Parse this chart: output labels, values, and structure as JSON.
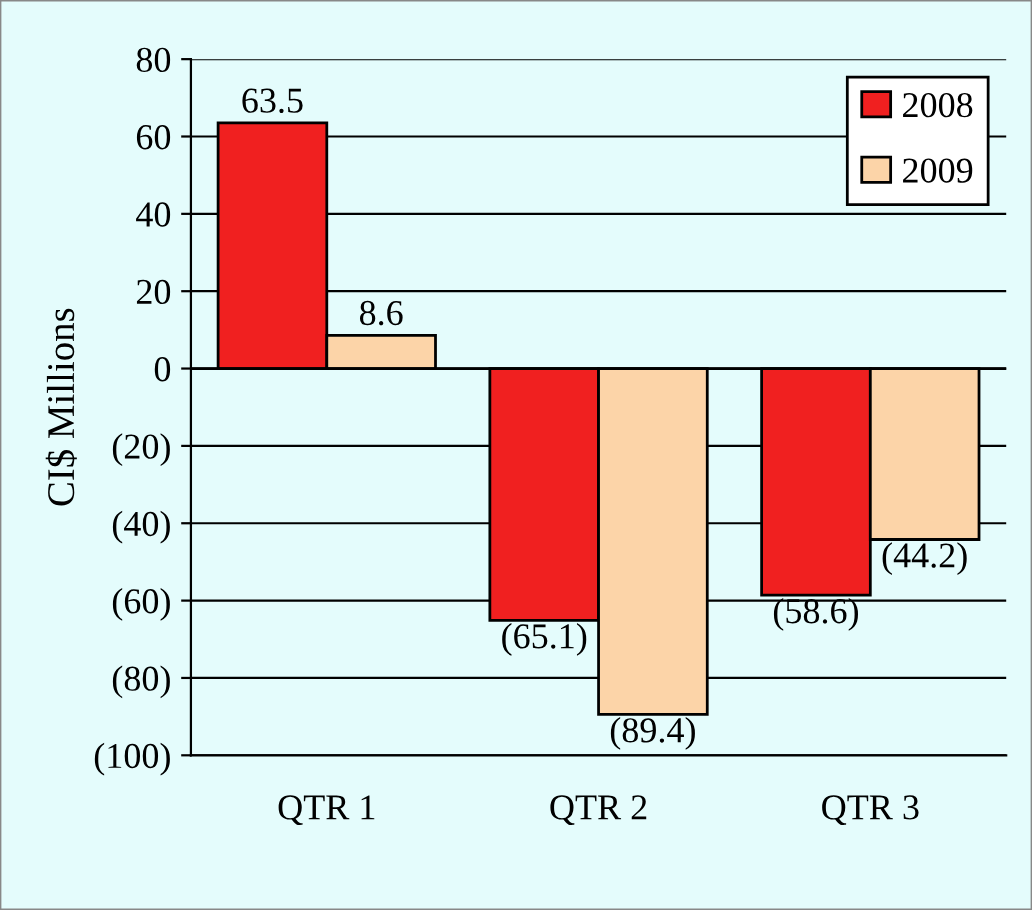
{
  "chart_data": {
    "type": "bar",
    "ylabel": "CI$ Millions",
    "categories": [
      "QTR 1",
      "QTR 2",
      "QTR 3"
    ],
    "series": [
      {
        "name": "2008",
        "color": "#f02020",
        "values": [
          63.5,
          -65.1,
          -58.6
        ],
        "value_labels": [
          "63.5",
          "(65.1)",
          "(58.6)"
        ]
      },
      {
        "name": "2009",
        "color": "#fcd4a8",
        "values": [
          8.6,
          -89.4,
          -44.2
        ],
        "value_labels": [
          "8.6",
          "(89.4)",
          "(44.2)"
        ]
      }
    ],
    "ylim": [
      -100,
      80
    ],
    "yticks": [
      80,
      60,
      40,
      20,
      0,
      {
        "value": -20,
        "label": "(20)"
      },
      {
        "value": -40,
        "label": "(40)"
      },
      {
        "value": -60,
        "label": "(60)"
      },
      {
        "value": -80,
        "label": "(80)"
      },
      {
        "value": -100,
        "label": "(100)"
      }
    ],
    "grid": "y",
    "legend": "top right"
  }
}
